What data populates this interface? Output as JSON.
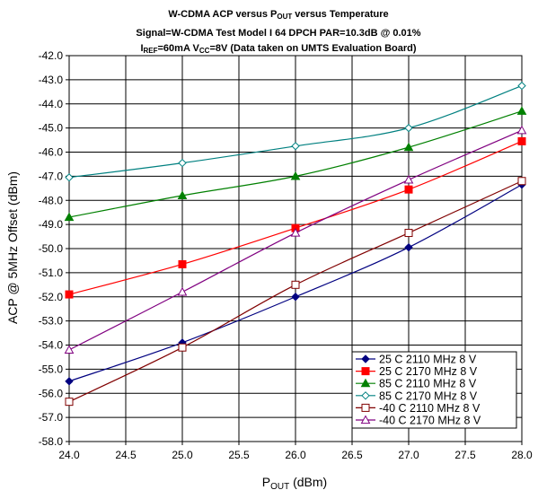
{
  "chart_data": {
    "type": "line",
    "title": {
      "line1": "W-CDMA ACP versus P",
      "line1_sub": "OUT",
      "line1_tail": " versus Temperature",
      "line2": "Signal=W-CDMA Test Model I 64 DPCH PAR=10.3dB @ 0.01%",
      "line3_a": "I",
      "line3_a_sub": "REF",
      "line3_b": "=60mA V",
      "line3_b_sub": "CC",
      "line3_c": "=8V (Data taken on UMTS Evaluation Board)"
    },
    "xlabel": {
      "main": "P",
      "sub": "OUT",
      "tail": " (dBm)"
    },
    "ylabel": "ACP @ 5MHz Offset (dBm)",
    "xlim": [
      24.0,
      28.0
    ],
    "ylim": [
      -58.0,
      -42.0
    ],
    "x_ticks": [
      "24.0",
      "24.5",
      "25.0",
      "25.5",
      "26.0",
      "26.5",
      "27.0",
      "27.5",
      "28.0"
    ],
    "y_ticks": [
      "-42.0",
      "-43.0",
      "-44.0",
      "-45.0",
      "-46.0",
      "-47.0",
      "-48.0",
      "-49.0",
      "-50.0",
      "-51.0",
      "-52.0",
      "-53.0",
      "-54.0",
      "-55.0",
      "-56.0",
      "-57.0",
      "-58.0"
    ],
    "grid": true,
    "legend_position": "bottom-right",
    "series": [
      {
        "name": "25 C 2110 MHz  8 V",
        "color": "#000080",
        "marker": "diamond-filled",
        "x": [
          24.0,
          25.0,
          26.0,
          27.0,
          28.0
        ],
        "y": [
          -55.5,
          -53.9,
          -52.0,
          -49.95,
          -47.35
        ]
      },
      {
        "name": "25 C 2170 MHz  8 V",
        "color": "#ff0000",
        "marker": "square-filled",
        "x": [
          24.0,
          25.0,
          26.0,
          27.0,
          28.0
        ],
        "y": [
          -51.9,
          -50.65,
          -49.15,
          -47.55,
          -45.55
        ]
      },
      {
        "name": "85 C 2110 MHz  8 V",
        "color": "#008000",
        "marker": "triangle-filled",
        "x": [
          24.0,
          25.0,
          26.0,
          27.0,
          28.0
        ],
        "y": [
          -48.7,
          -47.8,
          -47.0,
          -45.8,
          -44.3
        ]
      },
      {
        "name": "85 C 2170 MHz  8 V",
        "color": "#008080",
        "marker": "diamond-open",
        "x": [
          24.0,
          25.0,
          26.0,
          27.0,
          28.0
        ],
        "y": [
          -47.05,
          -46.45,
          -45.75,
          -45.0,
          -43.25
        ]
      },
      {
        "name": "-40 C 2110 MHz  8 V",
        "color": "#800000",
        "marker": "square-open",
        "x": [
          24.0,
          25.0,
          26.0,
          27.0,
          28.0
        ],
        "y": [
          -56.35,
          -54.1,
          -51.5,
          -49.35,
          -47.2
        ]
      },
      {
        "name": "-40 C 2170 MHz  8 V",
        "color": "#800080",
        "marker": "triangle-open",
        "x": [
          24.0,
          25.0,
          26.0,
          27.0,
          28.0
        ],
        "y": [
          -54.2,
          -51.8,
          -49.35,
          -47.15,
          -45.1
        ]
      }
    ]
  }
}
